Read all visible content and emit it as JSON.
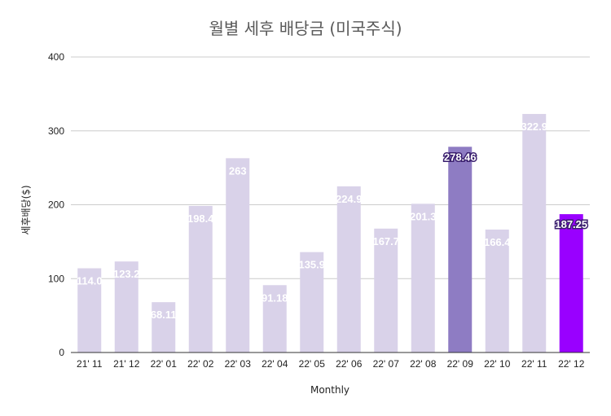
{
  "chart_data": {
    "type": "bar",
    "title": "월별 세후 배당금 (미국주식)",
    "xlabel": "Monthly",
    "ylabel": "세후배당($)",
    "ylim": [
      0,
      400
    ],
    "yticks": [
      0,
      100,
      200,
      300,
      400
    ],
    "grid": true,
    "legend": "none",
    "categories": [
      "21' 11",
      "21' 12",
      "22' 01",
      "22' 02",
      "22' 03",
      "22' 04",
      "22' 05",
      "22' 06",
      "22' 07",
      "22' 08",
      "22' 09",
      "22' 10",
      "22' 11",
      "22' 12"
    ],
    "values": [
      114.0,
      123.2,
      68.11,
      198.4,
      263,
      91.18,
      135.9,
      224.9,
      167.7,
      201.3,
      278.46,
      166.4,
      322.9,
      187.25
    ],
    "data_labels": [
      "114.0",
      "123.2",
      "68.11",
      "198.4",
      "263",
      "91.18",
      "135.9",
      "224.9",
      "167.7",
      "201.3",
      "278.46",
      "166.4",
      "322.9",
      "187.25"
    ],
    "bar_colors": [
      "#d9d2e9",
      "#d9d2e9",
      "#d9d2e9",
      "#d9d2e9",
      "#d9d2e9",
      "#d9d2e9",
      "#d9d2e9",
      "#d9d2e9",
      "#d9d2e9",
      "#d9d2e9",
      "#8e7cc3",
      "#d9d2e9",
      "#d9d2e9",
      "#9900ff"
    ],
    "highlighted": [
      false,
      false,
      false,
      false,
      false,
      false,
      false,
      false,
      false,
      false,
      true,
      false,
      false,
      true
    ]
  }
}
